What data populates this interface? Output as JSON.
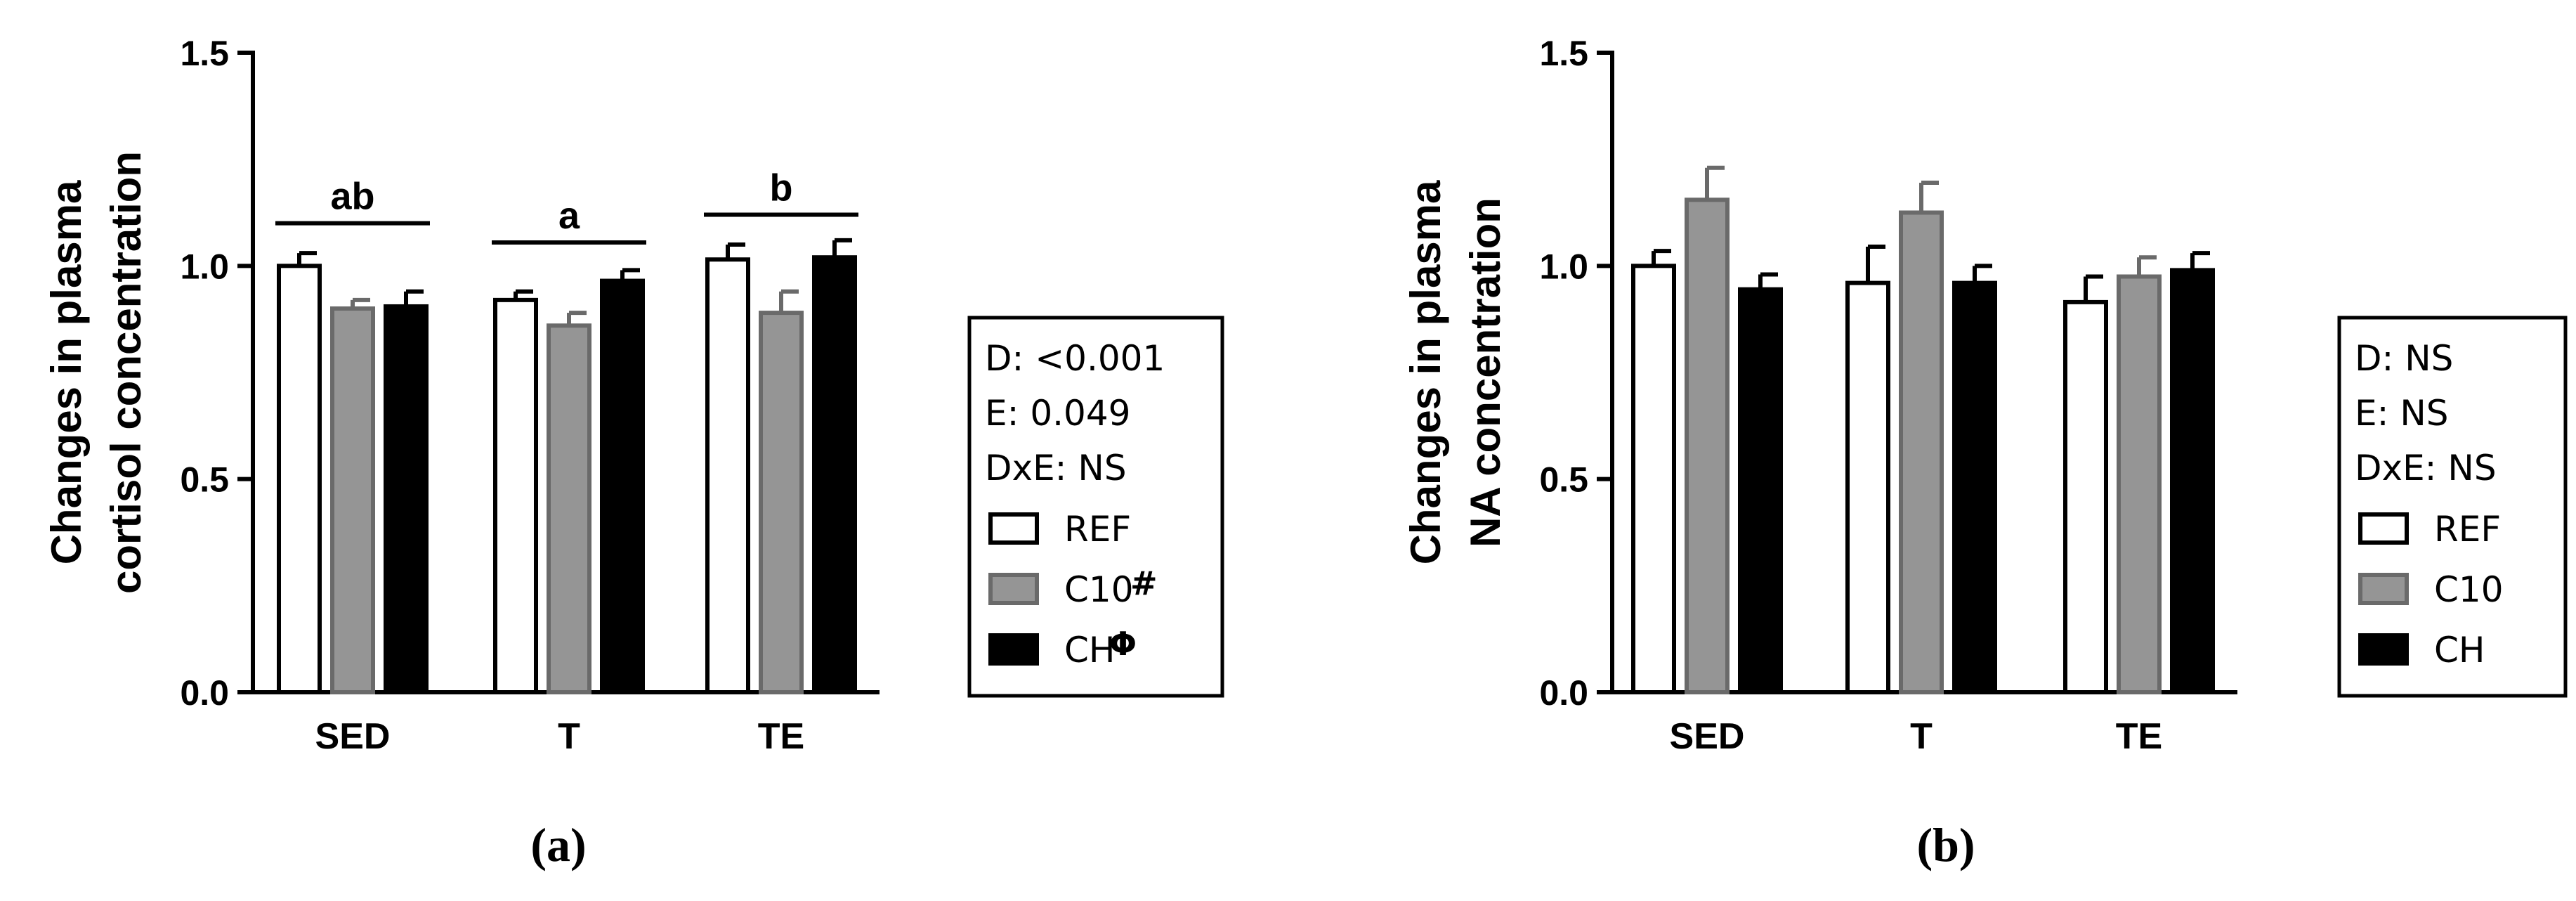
{
  "colors": {
    "REF": "#ffffff",
    "C10": "#959595",
    "CH": "#000000",
    "REF_stroke": "#000000",
    "C10_stroke": "#6a6a6a",
    "CH_stroke": "#000000"
  },
  "chart_data": [
    {
      "type": "bar",
      "panel_label": "(a)",
      "ylabel_lines": [
        "Changes in plasma",
        "cortisol concentration"
      ],
      "ylim": [
        0,
        1.5
      ],
      "yticks": [
        "0.0",
        "0.5",
        "1.0",
        "1.5"
      ],
      "categories": [
        "SED",
        "T",
        "TE"
      ],
      "series": [
        {
          "name": "REF",
          "values": [
            1.0,
            0.92,
            1.015
          ],
          "errors": [
            0.03,
            0.02,
            0.035
          ]
        },
        {
          "name": "C10",
          "values": [
            0.9,
            0.86,
            0.89
          ],
          "errors": [
            0.02,
            0.03,
            0.05
          ]
        },
        {
          "name": "CH",
          "values": [
            0.905,
            0.965,
            1.02
          ],
          "errors": [
            0.035,
            0.025,
            0.04
          ]
        }
      ],
      "significance": [
        {
          "category": "SED",
          "label": "ab",
          "y": 1.1
        },
        {
          "category": "T",
          "label": "a",
          "y": 1.055
        },
        {
          "category": "TE",
          "label": "b",
          "y": 1.12
        }
      ],
      "stats": [
        "D: <0.001",
        "E: 0.049",
        "DxE: NS"
      ],
      "legend": [
        {
          "label": "REF",
          "sup": ""
        },
        {
          "label": "C10",
          "sup": "#"
        },
        {
          "label": "CH",
          "sup": "Φ"
        }
      ]
    },
    {
      "type": "bar",
      "panel_label": "(b)",
      "ylabel_lines": [
        "Changes in plasma",
        "NA concentration"
      ],
      "ylim": [
        0,
        1.5
      ],
      "yticks": [
        "0.0",
        "0.5",
        "1.0",
        "1.5"
      ],
      "categories": [
        "SED",
        "T",
        "TE"
      ],
      "series": [
        {
          "name": "REF",
          "values": [
            1.0,
            0.96,
            0.915
          ],
          "errors": [
            0.035,
            0.085,
            0.06
          ]
        },
        {
          "name": "C10",
          "values": [
            1.155,
            1.125,
            0.975
          ],
          "errors": [
            0.075,
            0.07,
            0.045
          ]
        },
        {
          "name": "CH",
          "values": [
            0.945,
            0.96,
            0.99
          ],
          "errors": [
            0.035,
            0.04,
            0.04
          ]
        }
      ],
      "significance": [],
      "stats": [
        "D: NS",
        "E: NS",
        "DxE: NS"
      ],
      "legend": [
        {
          "label": "REF",
          "sup": ""
        },
        {
          "label": "C10",
          "sup": ""
        },
        {
          "label": "CH",
          "sup": ""
        }
      ]
    }
  ]
}
